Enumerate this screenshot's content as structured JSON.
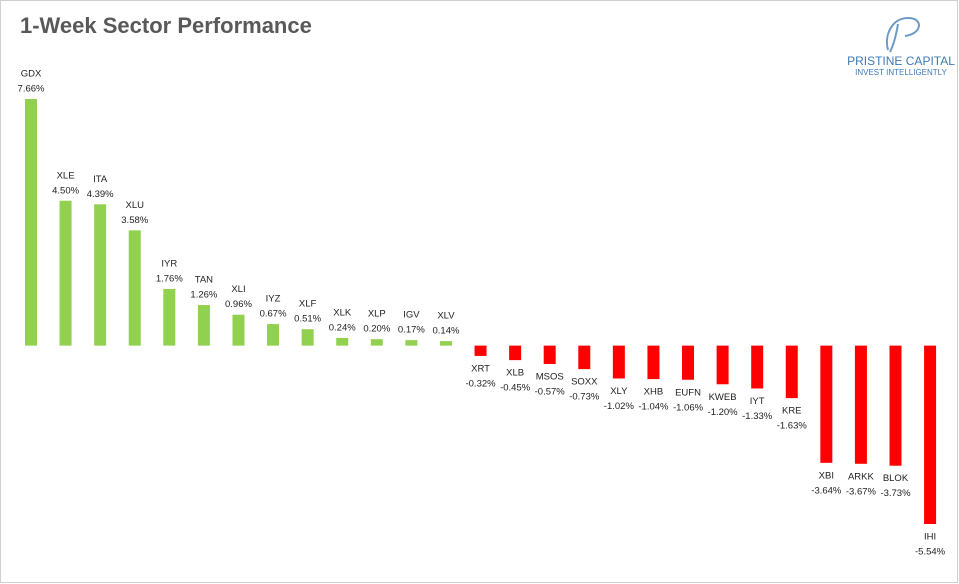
{
  "chart_data": {
    "type": "bar",
    "title": "1-Week Sector Performance",
    "categories": [
      "GDX",
      "XLE",
      "ITA",
      "XLU",
      "IYR",
      "TAN",
      "XLI",
      "IYZ",
      "XLF",
      "XLK",
      "XLP",
      "IGV",
      "XLV",
      "XRT",
      "XLB",
      "MSOS",
      "SOXX",
      "XLY",
      "XHB",
      "EUFN",
      "KWEB",
      "IYT",
      "KRE",
      "XBI",
      "ARKK",
      "BLOK",
      "IHI"
    ],
    "values": [
      7.66,
      4.5,
      4.39,
      3.58,
      1.76,
      1.26,
      0.96,
      0.67,
      0.51,
      0.24,
      0.2,
      0.17,
      0.14,
      -0.32,
      -0.45,
      -0.57,
      -0.73,
      -1.02,
      -1.04,
      -1.06,
      -1.2,
      -1.33,
      -1.63,
      -3.64,
      -3.67,
      -3.73,
      -5.54
    ],
    "value_labels": [
      "7.66%",
      "4.50%",
      "4.39%",
      "3.58%",
      "1.76%",
      "1.26%",
      "0.96%",
      "0.67%",
      "0.51%",
      "0.24%",
      "0.20%",
      "0.17%",
      "0.14%",
      "-0.32%",
      "-0.45%",
      "-0.57%",
      "-0.73%",
      "-1.02%",
      "-1.04%",
      "-1.06%",
      "-1.20%",
      "-1.33%",
      "-1.63%",
      "-3.64%",
      "-3.67%",
      "-3.73%",
      "-5.54%"
    ],
    "positive_color": "#92d050",
    "negative_color": "#ff0000"
  },
  "logo": {
    "name": "PRISTINE CAPITAL",
    "tagline": "INVEST INTELLIGENTLY"
  }
}
